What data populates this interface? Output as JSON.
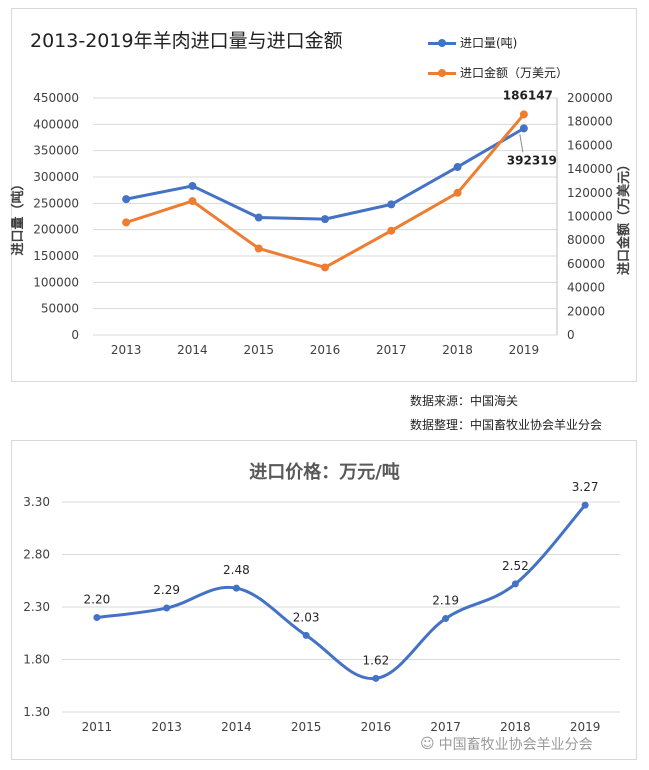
{
  "chart_data": [
    {
      "type": "line",
      "title": "2013-2019年羊肉进口量与进口金额",
      "categories": [
        "2013",
        "2014",
        "2015",
        "2016",
        "2017",
        "2018",
        "2019"
      ],
      "series": [
        {
          "name": "进口量(吨)",
          "axis": "left",
          "color": "#4472c4",
          "values": [
            258000,
            283000,
            223000,
            220000,
            248000,
            319000,
            392319
          ]
        },
        {
          "name": "进口金额（万美元）",
          "axis": "right",
          "color": "#ed7d31",
          "values": [
            95000,
            113000,
            73000,
            57000,
            88000,
            120000,
            186147
          ]
        }
      ],
      "ylabel_left": "进口量（吨）",
      "ylabel_right": "进口金额（万美元）",
      "ylim_left": [
        0,
        450000
      ],
      "ylim_right": [
        0,
        200000
      ],
      "yticks_left": [
        "450000",
        "400000",
        "350000",
        "300000",
        "250000",
        "200000",
        "150000",
        "100000",
        "50000",
        "0"
      ],
      "yticks_right": [
        "200000",
        "180000",
        "160000",
        "140000",
        "120000",
        "100000",
        "80000",
        "60000",
        "40000",
        "20000",
        "0"
      ],
      "data_labels": [
        {
          "series": 1,
          "index": 6,
          "text": "186147"
        },
        {
          "series": 0,
          "index": 6,
          "text": "392319"
        }
      ],
      "grid": true,
      "legend": "top-right"
    },
    {
      "type": "line",
      "title": "进口价格：万元/吨",
      "categories": [
        "2011",
        "2013",
        "2014",
        "2015",
        "2016",
        "2017",
        "2018",
        "2019"
      ],
      "series": [
        {
          "color": "#4472c4",
          "values": [
            2.2,
            2.29,
            2.48,
            2.03,
            1.62,
            2.19,
            2.52,
            3.27
          ]
        }
      ],
      "data_labels": [
        "2.20",
        "2.29",
        "2.48",
        "2.03",
        "1.62",
        "2.19",
        "2.52",
        "3.27"
      ],
      "ylim": [
        1.3,
        3.3
      ],
      "yticks": [
        "3.30",
        "2.80",
        "2.30",
        "1.80",
        "1.30"
      ],
      "grid": true,
      "smooth": true
    }
  ],
  "legend": {
    "item1": "进口量(吨)",
    "item2": "进口金额（万美元）",
    "color1": "#4472c4",
    "color2": "#ed7d31"
  },
  "notes": {
    "source": "数据来源：中国海关",
    "compiled": "数据整理：中国畜牧业协会羊业分会"
  },
  "watermark": {
    "text": "中国畜牧业协会羊业分会",
    "icon": "wechat-icon"
  }
}
